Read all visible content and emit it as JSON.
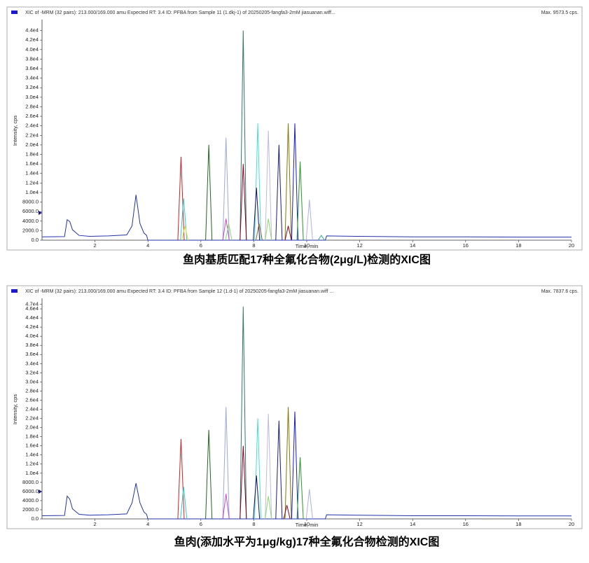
{
  "chart_data": [
    {
      "type": "line",
      "header": "XIC of -MRM (32 pairs): 213.000/169.000 amu Expected RT: 3.4 ID: PFBA from Sample 11 (1.dkj-1) of 20250205-fangfa3-2mM jiasuanan.wiff...",
      "max_label": "Max. 9573.5 cps.",
      "ylabel": "Intensity, cps",
      "xlabel": "Time, min",
      "caption": "鱼肉基质匹配17种全氟化合物(2μg/L)检测的XIC图",
      "xlim": [
        0,
        20
      ],
      "ylim": [
        0,
        46000
      ],
      "xticks": [
        2,
        4,
        6,
        8,
        10,
        12,
        14,
        16,
        18,
        20
      ],
      "yticks": [
        {
          "value": 0,
          "label": "0.0"
        },
        {
          "value": 2000,
          "label": "2000.0"
        },
        {
          "value": 4000,
          "label": "4000.0"
        },
        {
          "value": 6000,
          "label": "6000.0"
        },
        {
          "value": 8000,
          "label": "8000.0"
        },
        {
          "value": 10000,
          "label": "1.0e4"
        },
        {
          "value": 12000,
          "label": "1.2e4"
        },
        {
          "value": 14000,
          "label": "1.4e4"
        },
        {
          "value": 16000,
          "label": "1.6e4"
        },
        {
          "value": 18000,
          "label": "1.8e4"
        },
        {
          "value": 20000,
          "label": "2.0e4"
        },
        {
          "value": 22000,
          "label": "2.2e4"
        },
        {
          "value": 24000,
          "label": "2.4e4"
        },
        {
          "value": 26000,
          "label": "2.6e4"
        },
        {
          "value": 28000,
          "label": "2.8e4"
        },
        {
          "value": 30000,
          "label": "3.0e4"
        },
        {
          "value": 32000,
          "label": "3.2e4"
        },
        {
          "value": 34000,
          "label": "3.4e4"
        },
        {
          "value": 36000,
          "label": "3.6e4"
        },
        {
          "value": 38000,
          "label": "3.8e4"
        },
        {
          "value": 40000,
          "label": "4.0e4"
        },
        {
          "value": 42000,
          "label": "4.2e4"
        },
        {
          "value": 44000,
          "label": "4.4e4"
        }
      ],
      "series": [
        {
          "color": "#2233aa",
          "x": [
            0,
            0.85,
            0.95,
            1.05,
            1.15,
            1.4,
            1.8,
            2.5,
            3.2,
            3.4,
            3.55,
            3.7,
            3.85,
            3.95,
            4.0,
            10.7,
            10.75,
            12,
            14,
            16,
            18,
            20
          ],
          "values": [
            700,
            750,
            4300,
            3900,
            2200,
            1000,
            800,
            900,
            1100,
            3000,
            9500,
            3500,
            1500,
            1000,
            0,
            0,
            900,
            800,
            700,
            700,
            650,
            650
          ]
        },
        {
          "color": "#cc2222",
          "x": [
            5.13,
            5.25,
            5.37
          ],
          "values": [
            0,
            17500,
            0
          ]
        },
        {
          "color": "#33cccc",
          "x": [
            5.23,
            5.35,
            5.47
          ],
          "values": [
            0,
            8800,
            0
          ]
        },
        {
          "color": "#dddd33",
          "x": [
            5.28,
            5.4,
            5.52
          ],
          "values": [
            0,
            3000,
            0
          ]
        },
        {
          "color": "#226622",
          "x": [
            6.18,
            6.3,
            6.42
          ],
          "values": [
            0,
            20000,
            0
          ]
        },
        {
          "color": "#99aadd",
          "x": [
            6.83,
            6.95,
            7.07
          ],
          "values": [
            0,
            21500,
            0
          ]
        },
        {
          "color": "#cc44cc",
          "x": [
            6.83,
            6.95,
            7.07
          ],
          "values": [
            0,
            4500,
            0
          ]
        },
        {
          "color": "#88dd66",
          "x": [
            6.93,
            7.05,
            7.17
          ],
          "values": [
            0,
            3500,
            0
          ]
        },
        {
          "color": "#337766",
          "x": [
            7.48,
            7.6,
            7.72
          ],
          "values": [
            0,
            44000,
            0
          ]
        },
        {
          "color": "#880022",
          "x": [
            7.48,
            7.6,
            7.72
          ],
          "values": [
            0,
            16000,
            0
          ]
        },
        {
          "color": "#44dddd",
          "x": [
            8.03,
            8.15,
            8.27
          ],
          "values": [
            0,
            24500,
            0
          ]
        },
        {
          "color": "#111166",
          "x": [
            7.98,
            8.1,
            8.22
          ],
          "values": [
            0,
            11000,
            0
          ]
        },
        {
          "color": "#996633",
          "x": [
            8.08,
            8.2,
            8.32
          ],
          "values": [
            0,
            3500,
            0
          ]
        },
        {
          "color": "#c0b8e0",
          "x": [
            8.43,
            8.55,
            8.67
          ],
          "values": [
            0,
            23000,
            0
          ]
        },
        {
          "color": "#88dd66",
          "x": [
            8.43,
            8.55,
            8.67
          ],
          "values": [
            0,
            4500,
            0
          ]
        },
        {
          "color": "#1a1a88",
          "x": [
            8.83,
            8.95,
            9.07
          ],
          "values": [
            0,
            20000,
            0
          ]
        },
        {
          "color": "#887700",
          "x": [
            9.18,
            9.3,
            9.42
          ],
          "values": [
            0,
            24500,
            0
          ]
        },
        {
          "color": "#880022",
          "x": [
            9.18,
            9.3,
            9.42
          ],
          "values": [
            0,
            3000,
            0
          ]
        },
        {
          "color": "#1a1acc",
          "x": [
            9.43,
            9.55,
            9.67
          ],
          "values": [
            0,
            24500,
            0
          ]
        },
        {
          "color": "#229922",
          "x": [
            9.63,
            9.75,
            9.87
          ],
          "values": [
            0,
            16500,
            0
          ]
        },
        {
          "color": "#aab0ee",
          "x": [
            9.98,
            10.1,
            10.22
          ],
          "values": [
            0,
            8500,
            0
          ]
        },
        {
          "color": "#33aa88",
          "x": [
            10.43,
            10.55,
            10.67
          ],
          "values": [
            0,
            1000,
            0
          ]
        }
      ]
    },
    {
      "type": "line",
      "header": "XIC of -MRM (32 pairs): 213.000/169.000 amu Expected RT: 3.4 ID: PFBA from Sample 12 (1.d-1) of 20250205-fangfa3-2mM jiasuanan.wiff ...",
      "max_label": "Max. 7837.6 cps.",
      "ylabel": "Intensity, cps",
      "xlabel": "Time, min",
      "caption": "鱼肉(添加水平为1μg/kg)17种全氟化合物检测的XIC图",
      "xlim": [
        0,
        20
      ],
      "ylim": [
        0,
        48000
      ],
      "xticks": [
        2,
        4,
        6,
        8,
        10,
        12,
        14,
        16,
        18,
        20
      ],
      "yticks": [
        {
          "value": 0,
          "label": "0.0"
        },
        {
          "value": 2000,
          "label": "2000.0"
        },
        {
          "value": 4000,
          "label": "4000.0"
        },
        {
          "value": 6000,
          "label": "6000.0"
        },
        {
          "value": 8000,
          "label": "8000.0"
        },
        {
          "value": 10000,
          "label": "1.0e4"
        },
        {
          "value": 12000,
          "label": "1.2e4"
        },
        {
          "value": 14000,
          "label": "1.4e4"
        },
        {
          "value": 16000,
          "label": "1.6e4"
        },
        {
          "value": 18000,
          "label": "1.8e4"
        },
        {
          "value": 20000,
          "label": "2.0e4"
        },
        {
          "value": 22000,
          "label": "2.2e4"
        },
        {
          "value": 24000,
          "label": "2.4e4"
        },
        {
          "value": 26000,
          "label": "2.6e4"
        },
        {
          "value": 28000,
          "label": "2.8e4"
        },
        {
          "value": 30000,
          "label": "3.0e4"
        },
        {
          "value": 32000,
          "label": "3.2e4"
        },
        {
          "value": 34000,
          "label": "3.4e4"
        },
        {
          "value": 36000,
          "label": "3.6e4"
        },
        {
          "value": 38000,
          "label": "3.8e4"
        },
        {
          "value": 40000,
          "label": "4.0e4"
        },
        {
          "value": 42000,
          "label": "4.2e4"
        },
        {
          "value": 44000,
          "label": "4.4e4"
        },
        {
          "value": 46000,
          "label": "4.6e4"
        },
        {
          "value": 47000,
          "label": "4.7e4"
        }
      ],
      "series": [
        {
          "color": "#2233aa",
          "x": [
            0,
            0.85,
            0.95,
            1.05,
            1.15,
            1.4,
            1.8,
            2.5,
            3.2,
            3.4,
            3.55,
            3.7,
            3.85,
            3.95,
            4.0,
            10.7,
            10.75,
            12,
            14,
            16,
            18,
            20
          ],
          "values": [
            700,
            750,
            5000,
            4300,
            2200,
            1000,
            800,
            900,
            1100,
            3500,
            7800,
            3500,
            1500,
            1000,
            0,
            0,
            900,
            800,
            700,
            700,
            650,
            650
          ]
        },
        {
          "color": "#cc2222",
          "x": [
            5.13,
            5.25,
            5.37
          ],
          "values": [
            0,
            17500,
            0
          ]
        },
        {
          "color": "#33cccc",
          "x": [
            5.23,
            5.35,
            5.47
          ],
          "values": [
            0,
            7000,
            0
          ]
        },
        {
          "color": "#226622",
          "x": [
            6.18,
            6.3,
            6.42
          ],
          "values": [
            0,
            19500,
            0
          ]
        },
        {
          "color": "#99aadd",
          "x": [
            6.83,
            6.95,
            7.07
          ],
          "values": [
            0,
            24500,
            0
          ]
        },
        {
          "color": "#cc44cc",
          "x": [
            6.83,
            6.95,
            7.07
          ],
          "values": [
            0,
            5500,
            0
          ]
        },
        {
          "color": "#337766",
          "x": [
            7.48,
            7.6,
            7.72
          ],
          "values": [
            0,
            46500,
            0
          ]
        },
        {
          "color": "#880022",
          "x": [
            7.48,
            7.6,
            7.72
          ],
          "values": [
            0,
            16000,
            0
          ]
        },
        {
          "color": "#44dddd",
          "x": [
            8.03,
            8.15,
            8.27
          ],
          "values": [
            0,
            22000,
            0
          ]
        },
        {
          "color": "#111166",
          "x": [
            7.98,
            8.1,
            8.22
          ],
          "values": [
            0,
            9500,
            0
          ]
        },
        {
          "color": "#c0b8e0",
          "x": [
            8.43,
            8.55,
            8.67
          ],
          "values": [
            0,
            23000,
            0
          ]
        },
        {
          "color": "#88dd66",
          "x": [
            8.43,
            8.55,
            8.67
          ],
          "values": [
            0,
            5000,
            0
          ]
        },
        {
          "color": "#1a1a88",
          "x": [
            8.83,
            8.95,
            9.07
          ],
          "values": [
            0,
            21500,
            0
          ]
        },
        {
          "color": "#887700",
          "x": [
            9.18,
            9.3,
            9.42
          ],
          "values": [
            0,
            24500,
            0
          ]
        },
        {
          "color": "#880022",
          "x": [
            9.13,
            9.25,
            9.37
          ],
          "values": [
            0,
            3000,
            0
          ]
        },
        {
          "color": "#1a1acc",
          "x": [
            9.43,
            9.55,
            9.67
          ],
          "values": [
            0,
            23500,
            0
          ]
        },
        {
          "color": "#229922",
          "x": [
            9.63,
            9.75,
            9.87
          ],
          "values": [
            0,
            13500,
            0
          ]
        },
        {
          "color": "#aab0ee",
          "x": [
            9.98,
            10.1,
            10.22
          ],
          "values": [
            0,
            6500,
            0
          ]
        }
      ]
    }
  ]
}
